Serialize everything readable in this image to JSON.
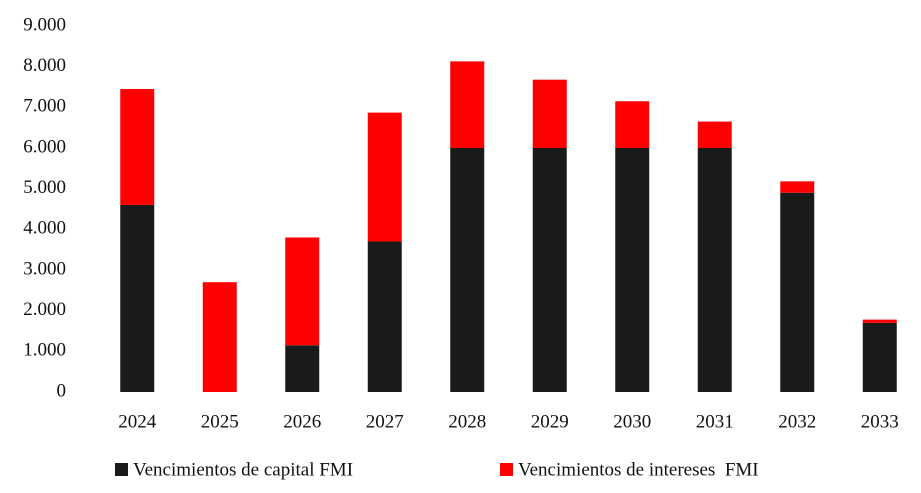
{
  "chart_data": {
    "type": "stacked_bar",
    "categories": [
      "2024",
      "2025",
      "2026",
      "2027",
      "2028",
      "2029",
      "2030",
      "2031",
      "2032",
      "2033"
    ],
    "series": [
      {
        "name": "Vencimientos de capital FMI",
        "color": "#1a1a1a",
        "values": [
          4600,
          0,
          1150,
          3700,
          6000,
          6000,
          6000,
          6000,
          4900,
          1700
        ]
      },
      {
        "name": "Vencimientos de intereses  FMI",
        "color": "#ff0000",
        "values": [
          2850,
          2700,
          2650,
          3170,
          2130,
          1680,
          1150,
          650,
          280,
          80
        ]
      }
    ],
    "ylim": [
      0,
      9000
    ],
    "yticks": [
      0,
      {
        "value": 1000,
        "label": "1.000"
      },
      {
        "value": 2000,
        "label": "2.000"
      },
      {
        "value": 3000,
        "label": "3.000"
      },
      {
        "value": 4000,
        "label": "4.000"
      },
      {
        "value": 5000,
        "label": "5.000"
      },
      {
        "value": 6000,
        "label": "6.000"
      },
      {
        "value": 7000,
        "label": "7.000"
      },
      {
        "value": 8000,
        "label": "8.000"
      },
      {
        "value": 9000,
        "label": "9.000"
      }
    ],
    "grid": false,
    "legend": "bottom"
  }
}
